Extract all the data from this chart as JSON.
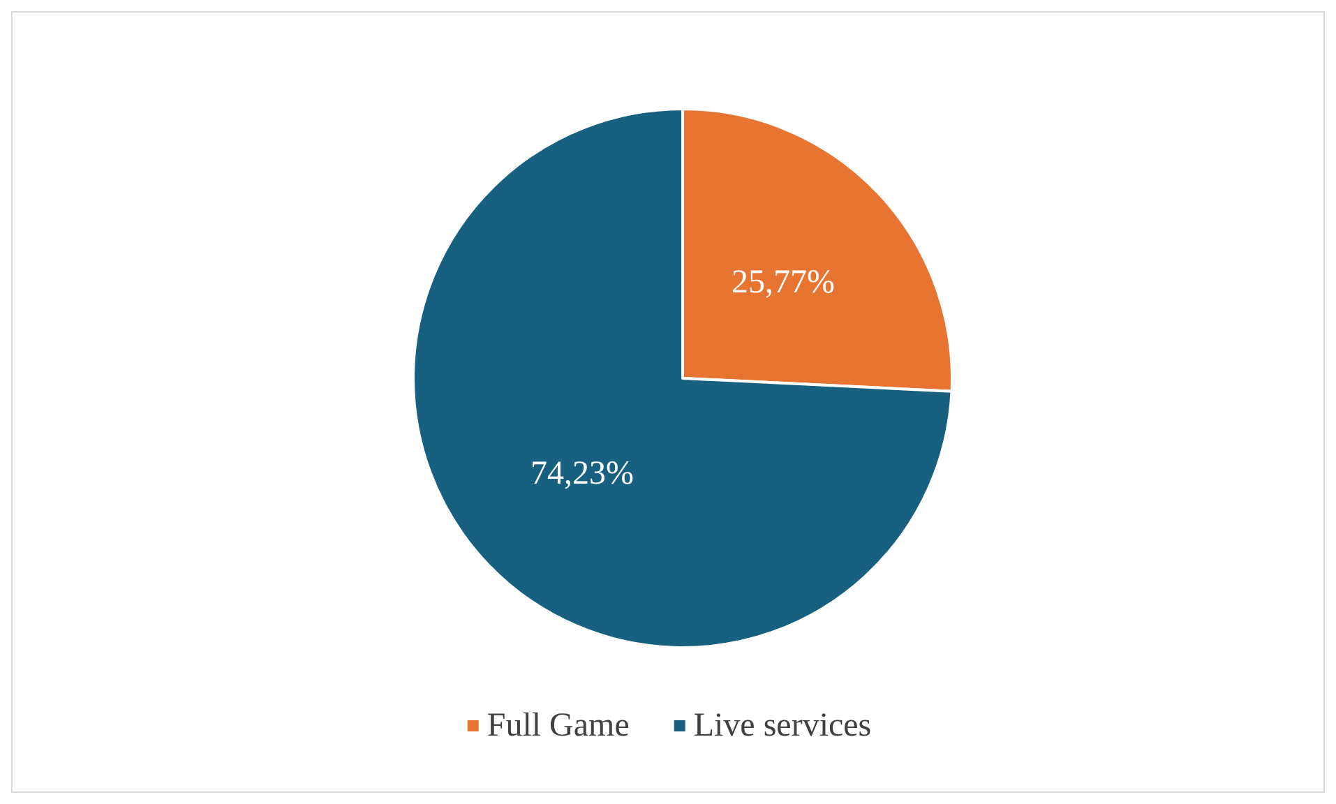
{
  "chart_data": {
    "type": "pie",
    "categories": [
      "Full Game",
      "Live services"
    ],
    "values": [
      25.77,
      74.23
    ],
    "colors": [
      "#e87432",
      "#17607f"
    ],
    "value_labels": [
      "25,77%",
      "74,23%"
    ],
    "legend": "bottom"
  }
}
